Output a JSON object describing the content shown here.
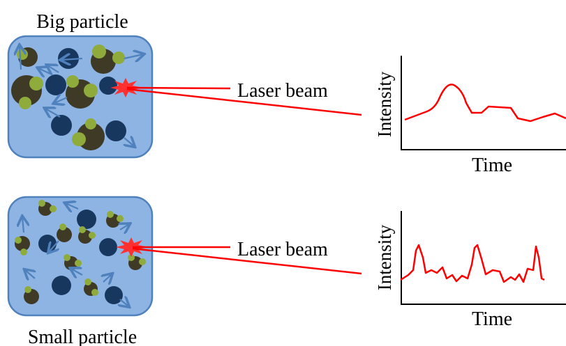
{
  "panels": [
    {
      "title": "Big particle",
      "laser_label": "Laser beam",
      "y_axis_label": "Intensity",
      "x_axis_label": "Time"
    },
    {
      "title": "Small particle",
      "laser_label": "Laser beam",
      "y_axis_label": "Intensity",
      "x_axis_label": "Time"
    }
  ]
}
